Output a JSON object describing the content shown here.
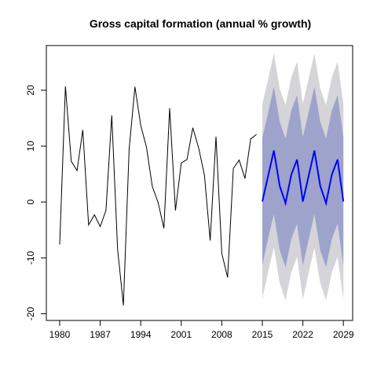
{
  "chart_data": {
    "type": "line",
    "title": "Gross capital formation (annual % growth)",
    "xlabel": "",
    "ylabel": "",
    "xlim": [
      1977.7,
      2030.6
    ],
    "ylim": [
      -21.2,
      28.0
    ],
    "x_ticks": [
      1980,
      1987,
      1994,
      2001,
      2008,
      2015,
      2022,
      2029
    ],
    "y_ticks": [
      -20,
      -10,
      0,
      10,
      20
    ],
    "grid": false,
    "legend": "none",
    "colors": {
      "history": "#000000",
      "forecast": "#0000ff",
      "band_80": "#9da3cb",
      "band_95": "#d4d4d9"
    },
    "series": [
      {
        "kind": "history",
        "x": [
          1980,
          1981,
          1982,
          1983,
          1984,
          1985,
          1986,
          1987,
          1988,
          1989,
          1990,
          1991,
          1992,
          1993,
          1994,
          1995,
          1996,
          1997,
          1998,
          1999,
          2000,
          2001,
          2002,
          2003,
          2004,
          2005,
          2006,
          2007,
          2008,
          2009,
          2010,
          2011,
          2012,
          2013,
          2014
        ],
        "values": [
          -7.6,
          20.7,
          7.3,
          5.6,
          12.9,
          -4.1,
          -2.3,
          -4.4,
          -1.5,
          15.5,
          -8.4,
          -18.5,
          9.4,
          20.6,
          13.7,
          9.8,
          2.8,
          -0.1,
          -4.7,
          16.8,
          -1.5,
          7.0,
          7.6,
          13.3,
          9.7,
          4.8,
          -6.9,
          11.7,
          -9.2,
          -13.5,
          6.0,
          7.5,
          4.2,
          11.3,
          12.1
        ]
      },
      {
        "kind": "forecast",
        "x": [
          2015,
          2016,
          2017,
          2018,
          2019,
          2020,
          2021,
          2022,
          2023,
          2024,
          2025,
          2026,
          2027,
          2028,
          2029
        ],
        "values": [
          0.1,
          4.7,
          9.2,
          2.9,
          -0.2,
          4.9,
          7.6,
          0.1,
          4.7,
          9.2,
          2.9,
          -0.2,
          4.9,
          7.6,
          0.1
        ],
        "lo80": [
          -11.3,
          -6.5,
          -2.2,
          -8.6,
          -11.7,
          -6.6,
          -3.9,
          -11.4,
          -6.7,
          -2.2,
          -8.6,
          -11.7,
          -6.6,
          -3.9,
          -11.4
        ],
        "hi80": [
          11.5,
          16.0,
          20.6,
          14.4,
          11.3,
          16.4,
          19.1,
          11.6,
          16.1,
          20.6,
          14.4,
          11.3,
          16.4,
          19.1,
          11.6
        ],
        "lo95": [
          -17.3,
          -12.5,
          -8.1,
          -14.5,
          -17.6,
          -12.6,
          -9.8,
          -17.4,
          -12.7,
          -8.2,
          -14.5,
          -17.6,
          -12.6,
          -9.8,
          -17.4
        ],
        "hi95": [
          17.5,
          22.0,
          26.6,
          20.3,
          17.3,
          22.3,
          25.1,
          17.6,
          22.1,
          26.5,
          20.3,
          17.3,
          22.3,
          25.1,
          17.6
        ]
      }
    ]
  }
}
